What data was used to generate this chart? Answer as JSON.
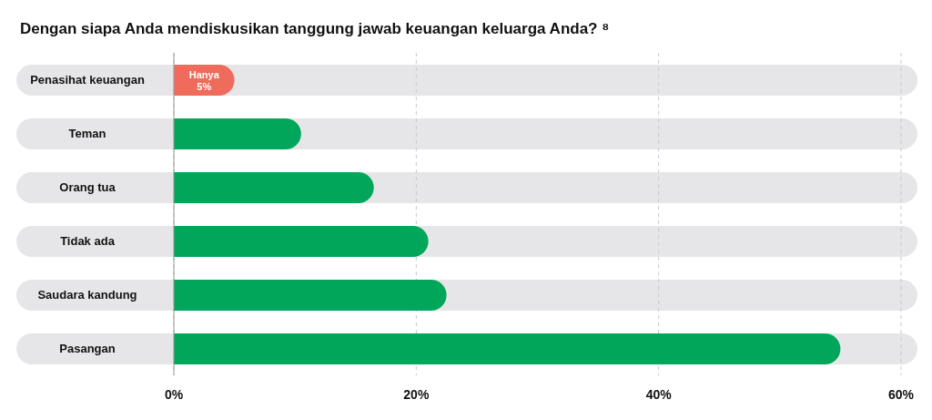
{
  "chart_data": {
    "type": "bar",
    "orientation": "horizontal",
    "title": "Dengan siapa Anda mendiskusikan tanggung jawab keuangan keluarga Anda? ⁸",
    "categories": [
      "Penasihat keuangan",
      "Teman",
      "Orang tua",
      "Tidak ada",
      "Saudara kandung",
      "Pasangan"
    ],
    "values": [
      5,
      10.5,
      16.5,
      21,
      22.5,
      55
    ],
    "colors": [
      "#ef6b5b",
      "#00a65a",
      "#00a65a",
      "#00a65a",
      "#00a65a",
      "#00a65a"
    ],
    "value_labels": [
      "Hanya 5%",
      null,
      null,
      null,
      null,
      null
    ],
    "xlim": [
      0,
      60
    ],
    "xticks": [
      {
        "value": 0,
        "label": "0%"
      },
      {
        "value": 20,
        "label": "20%"
      },
      {
        "value": 40,
        "label": "40%"
      },
      {
        "value": 60,
        "label": "60%"
      }
    ],
    "grid": "x"
  }
}
